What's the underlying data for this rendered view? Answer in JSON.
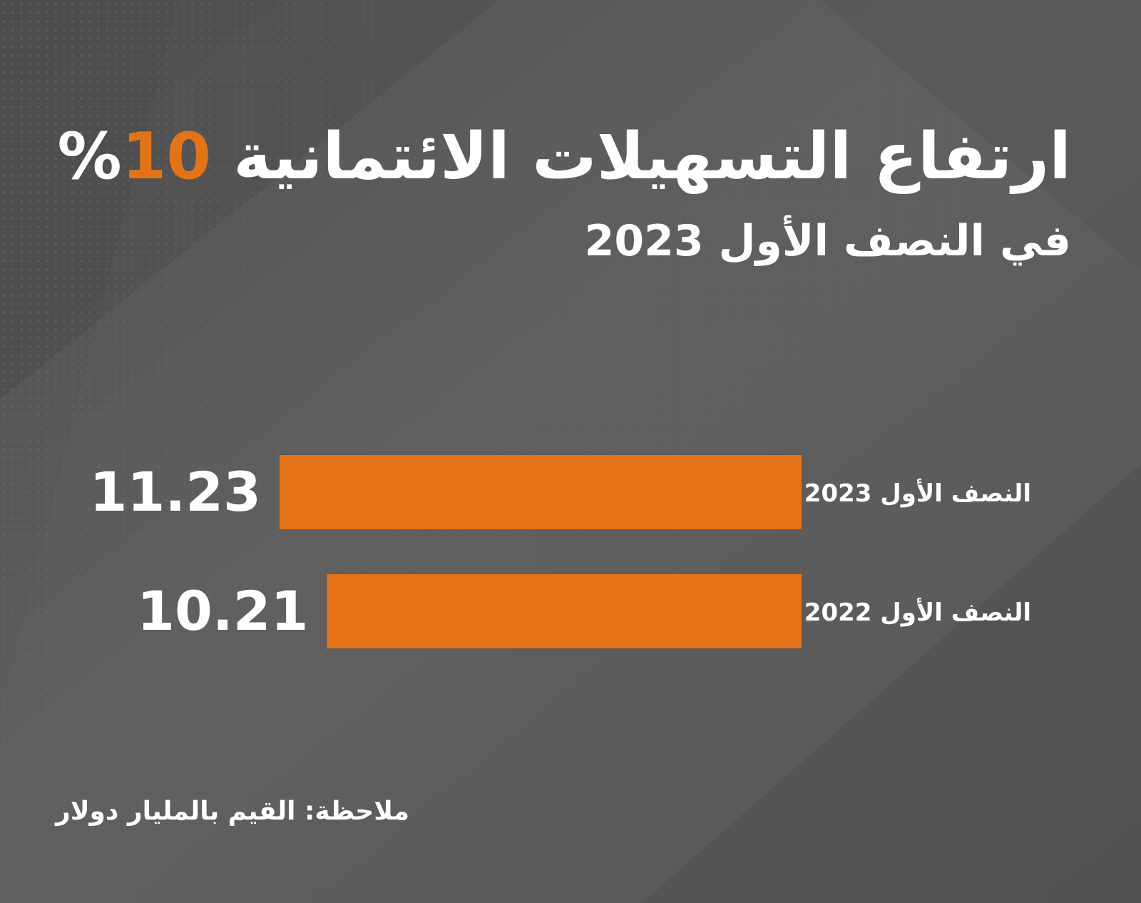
{
  "header": {
    "title_main": "ارتفاع التسهيلات الائتمانية",
    "title_accent": "10",
    "title_suffix": "%",
    "subtitle": "في النصف الأول 2023"
  },
  "chart_data": {
    "type": "bar",
    "orientation": "horizontal",
    "categories": [
      "النصف الأول 2023",
      "النصف الأول 2022"
    ],
    "values": [
      11.23,
      10.21
    ],
    "value_labels": [
      "11.23",
      "10.21"
    ],
    "bar_color": "#e47317"
  },
  "footer": {
    "note": "ملاحظة: القيم بالمليار دولار"
  },
  "colors": {
    "background": "#555555",
    "accent": "#e47317",
    "text": "#ffffff"
  }
}
